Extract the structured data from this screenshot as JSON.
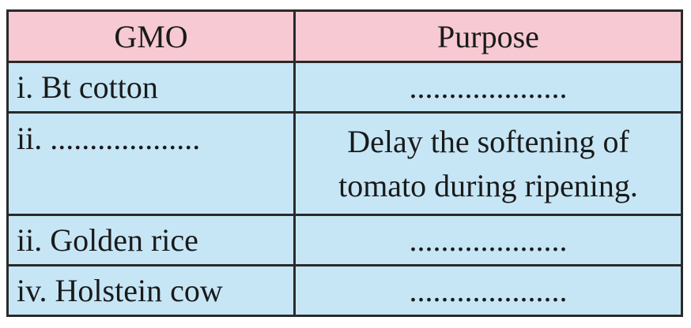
{
  "headers": [
    "GMO",
    "Purpose"
  ],
  "rows": [
    {
      "gmo": "i. Bt cotton",
      "purpose": "...................."
    },
    {
      "gmo": "ii. ...................",
      "purpose": "Delay the softening of tomato during ripening."
    },
    {
      "gmo": "ii. Golden rice",
      "purpose": "...................."
    },
    {
      "gmo": "iv. Holstein cow",
      "purpose": "...................."
    }
  ]
}
